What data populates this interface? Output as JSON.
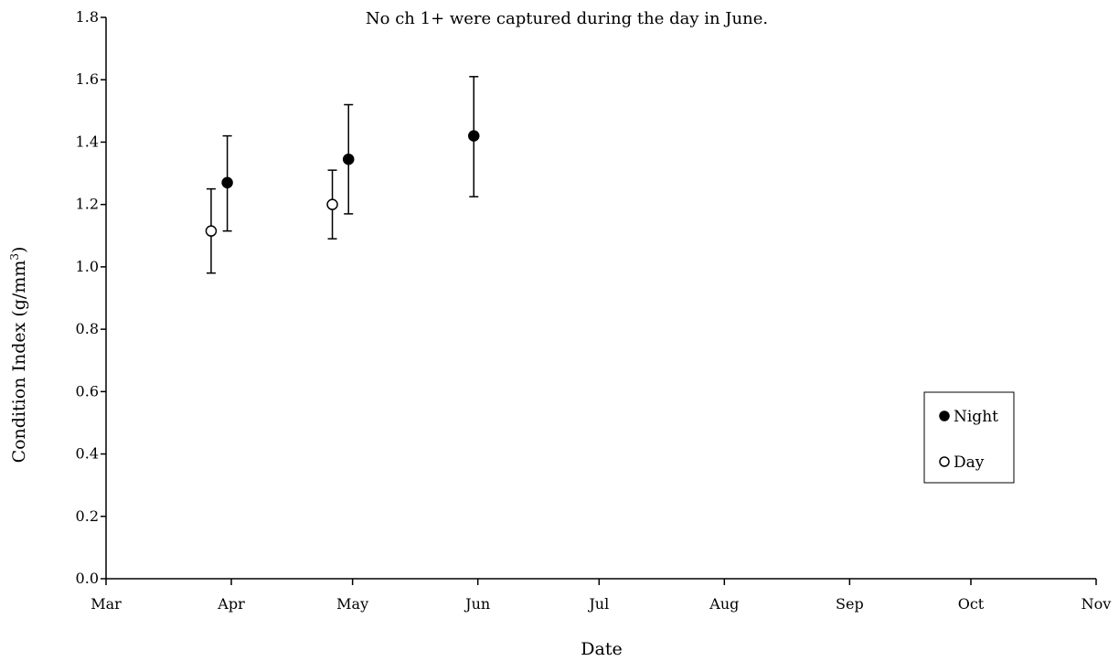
{
  "chart_data": {
    "type": "scatter",
    "annotation": "No ch 1+ were captured during the day in June.",
    "xlabel": "Date",
    "ylabel": "Condition Index (g/mm",
    "ylabel_sup": "3",
    "ylabel_close": ")",
    "x_ticks": [
      "Mar",
      "Apr",
      "May",
      "Jun",
      "Jul",
      "Aug",
      "Sep",
      "Oct",
      "Nov"
    ],
    "xlim": [
      "Mar",
      "Nov"
    ],
    "ylim": [
      0,
      1.8
    ],
    "y_ticks": [
      "0.0",
      "0.2",
      "0.4",
      "0.6",
      "0.8",
      "1.0",
      "1.2",
      "1.4",
      "1.6",
      "1.8"
    ],
    "grid": false,
    "legend_position": "bottom-right",
    "series": [
      {
        "name": "Night",
        "marker": "filled-circle",
        "color": "#000000",
        "points": [
          {
            "x": "Mar 31",
            "y": 1.27,
            "err_low": 1.115,
            "err_high": 1.42
          },
          {
            "x": "Apr 30",
            "y": 1.345,
            "err_low": 1.17,
            "err_high": 1.52
          },
          {
            "x": "May 31",
            "y": 1.42,
            "err_low": 1.225,
            "err_high": 1.61
          }
        ]
      },
      {
        "name": "Day",
        "marker": "open-circle",
        "color": "#000000",
        "points": [
          {
            "x": "Mar 27",
            "y": 1.115,
            "err_low": 0.98,
            "err_high": 1.25
          },
          {
            "x": "Apr 26",
            "y": 1.2,
            "err_low": 1.09,
            "err_high": 1.31
          }
        ]
      }
    ]
  }
}
